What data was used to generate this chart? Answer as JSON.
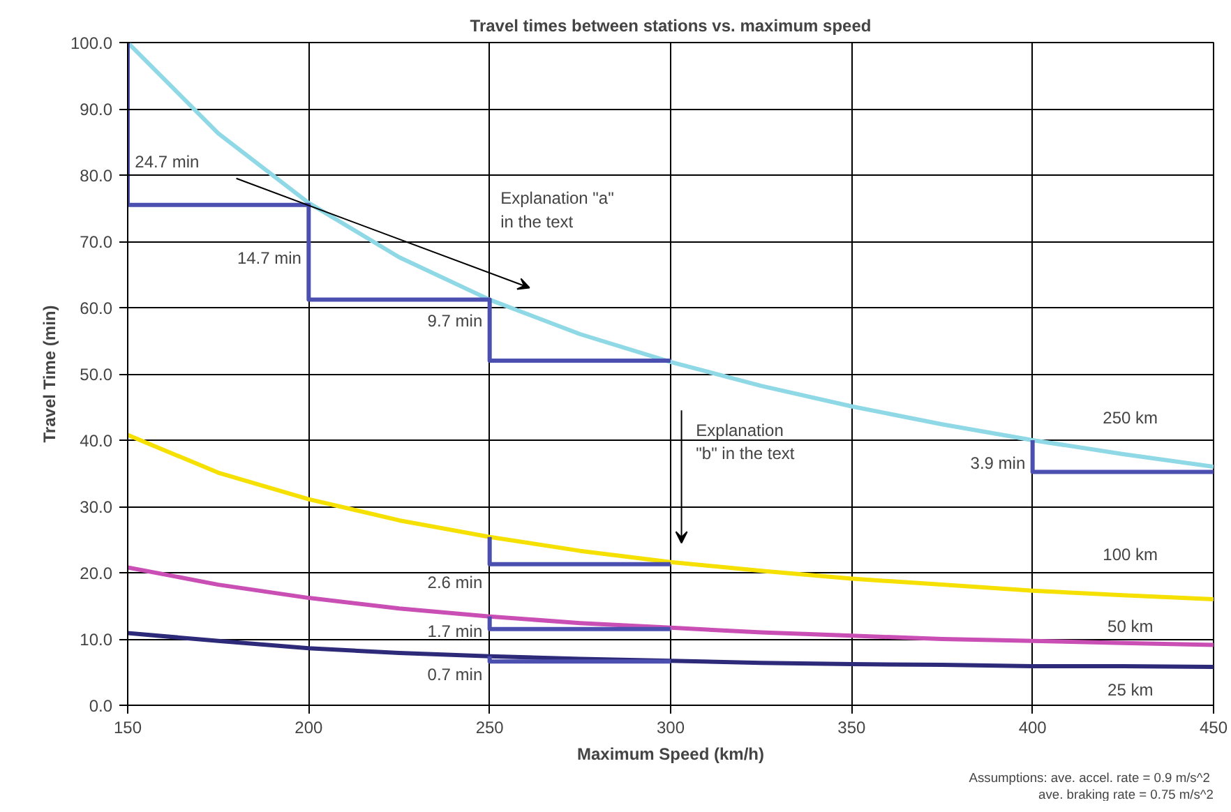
{
  "chart_data": {
    "type": "line",
    "title": "Travel times between stations vs. maximum speed",
    "xlabel": "Maximum Speed (km/h)",
    "ylabel": "Travel Time (min)",
    "xlim": [
      150,
      450
    ],
    "ylim": [
      0,
      100
    ],
    "xticks": [
      150,
      200,
      250,
      300,
      350,
      400,
      450
    ],
    "yticks": [
      {
        "value": 0,
        "label": "0.0"
      },
      {
        "value": 10,
        "label": "10.0"
      },
      {
        "value": 20,
        "label": "20.0"
      },
      {
        "value": 30,
        "label": "30.0"
      },
      {
        "value": 40,
        "label": "40.0"
      },
      {
        "value": 50,
        "label": "50.0"
      },
      {
        "value": 60,
        "label": "60.0"
      },
      {
        "value": 70,
        "label": "70.0"
      },
      {
        "value": 80,
        "label": "80.0"
      },
      {
        "value": 90,
        "label": "90.0"
      },
      {
        "value": 100,
        "label": "100.0"
      }
    ],
    "grid": true,
    "line_style": "solid",
    "x": [
      150,
      175,
      200,
      225,
      250,
      275,
      300,
      325,
      350,
      375,
      400,
      425,
      450
    ],
    "series": [
      {
        "color": "#8fd8e6",
        "values": [
          100.0,
          86.3,
          75.8,
          67.6,
          61.2,
          56.0,
          51.8,
          48.2,
          45.1,
          42.4,
          40.0,
          37.9,
          36.0
        ]
      },
      {
        "color": "#f5e000",
        "values": [
          40.8,
          35.1,
          31.1,
          27.9,
          25.4,
          23.3,
          21.6,
          20.3,
          19.1,
          18.2,
          17.3,
          16.6,
          16.0
        ]
      },
      {
        "color": "#c94fb5",
        "values": [
          20.8,
          18.2,
          16.2,
          14.6,
          13.4,
          12.4,
          11.7,
          11.0,
          10.5,
          10.0,
          9.7,
          9.4,
          9.1
        ]
      },
      {
        "color": "#2e2a7a",
        "values": [
          10.9,
          9.7,
          8.6,
          7.9,
          7.4,
          7.0,
          6.7,
          6.4,
          6.2,
          6.1,
          5.9,
          5.9,
          5.8
        ]
      },
      {
        "color": "#4a4fb0",
        "x": [
          150,
          150,
          200,
          200,
          250,
          250,
          300
        ],
        "values": [
          100.0,
          75.5,
          75.5,
          61.2,
          61.2,
          52.0,
          52.0
        ]
      },
      {
        "color": "#4a4fb0",
        "x": [
          400,
          400,
          450
        ],
        "values": [
          40.0,
          35.2,
          35.2
        ]
      },
      {
        "color": "#4a4fb0",
        "x": [
          250,
          250,
          300
        ],
        "values": [
          25.4,
          21.3,
          21.3
        ]
      },
      {
        "color": "#4a4fb0",
        "x": [
          250,
          250,
          300
        ],
        "values": [
          13.4,
          11.5,
          11.5
        ]
      },
      {
        "color": "#4a4fb0",
        "x": [
          250,
          250,
          300
        ],
        "values": [
          7.4,
          6.6,
          6.6
        ]
      }
    ],
    "annotations": [
      "24.7 min",
      "14.7 min",
      "9.7 min",
      "3.9 min",
      "2.6 min",
      "1.7 min",
      "0.7 min",
      "Explanation \"a\"\nin the text",
      "Explanation\n\"b\" in the text",
      "250 km",
      "100 km",
      "50 km",
      "25 km",
      "Assumptions:  ave. accel. rate = 0.9 m/s^2",
      "ave. braking rate = 0.75 m/s^2"
    ]
  }
}
